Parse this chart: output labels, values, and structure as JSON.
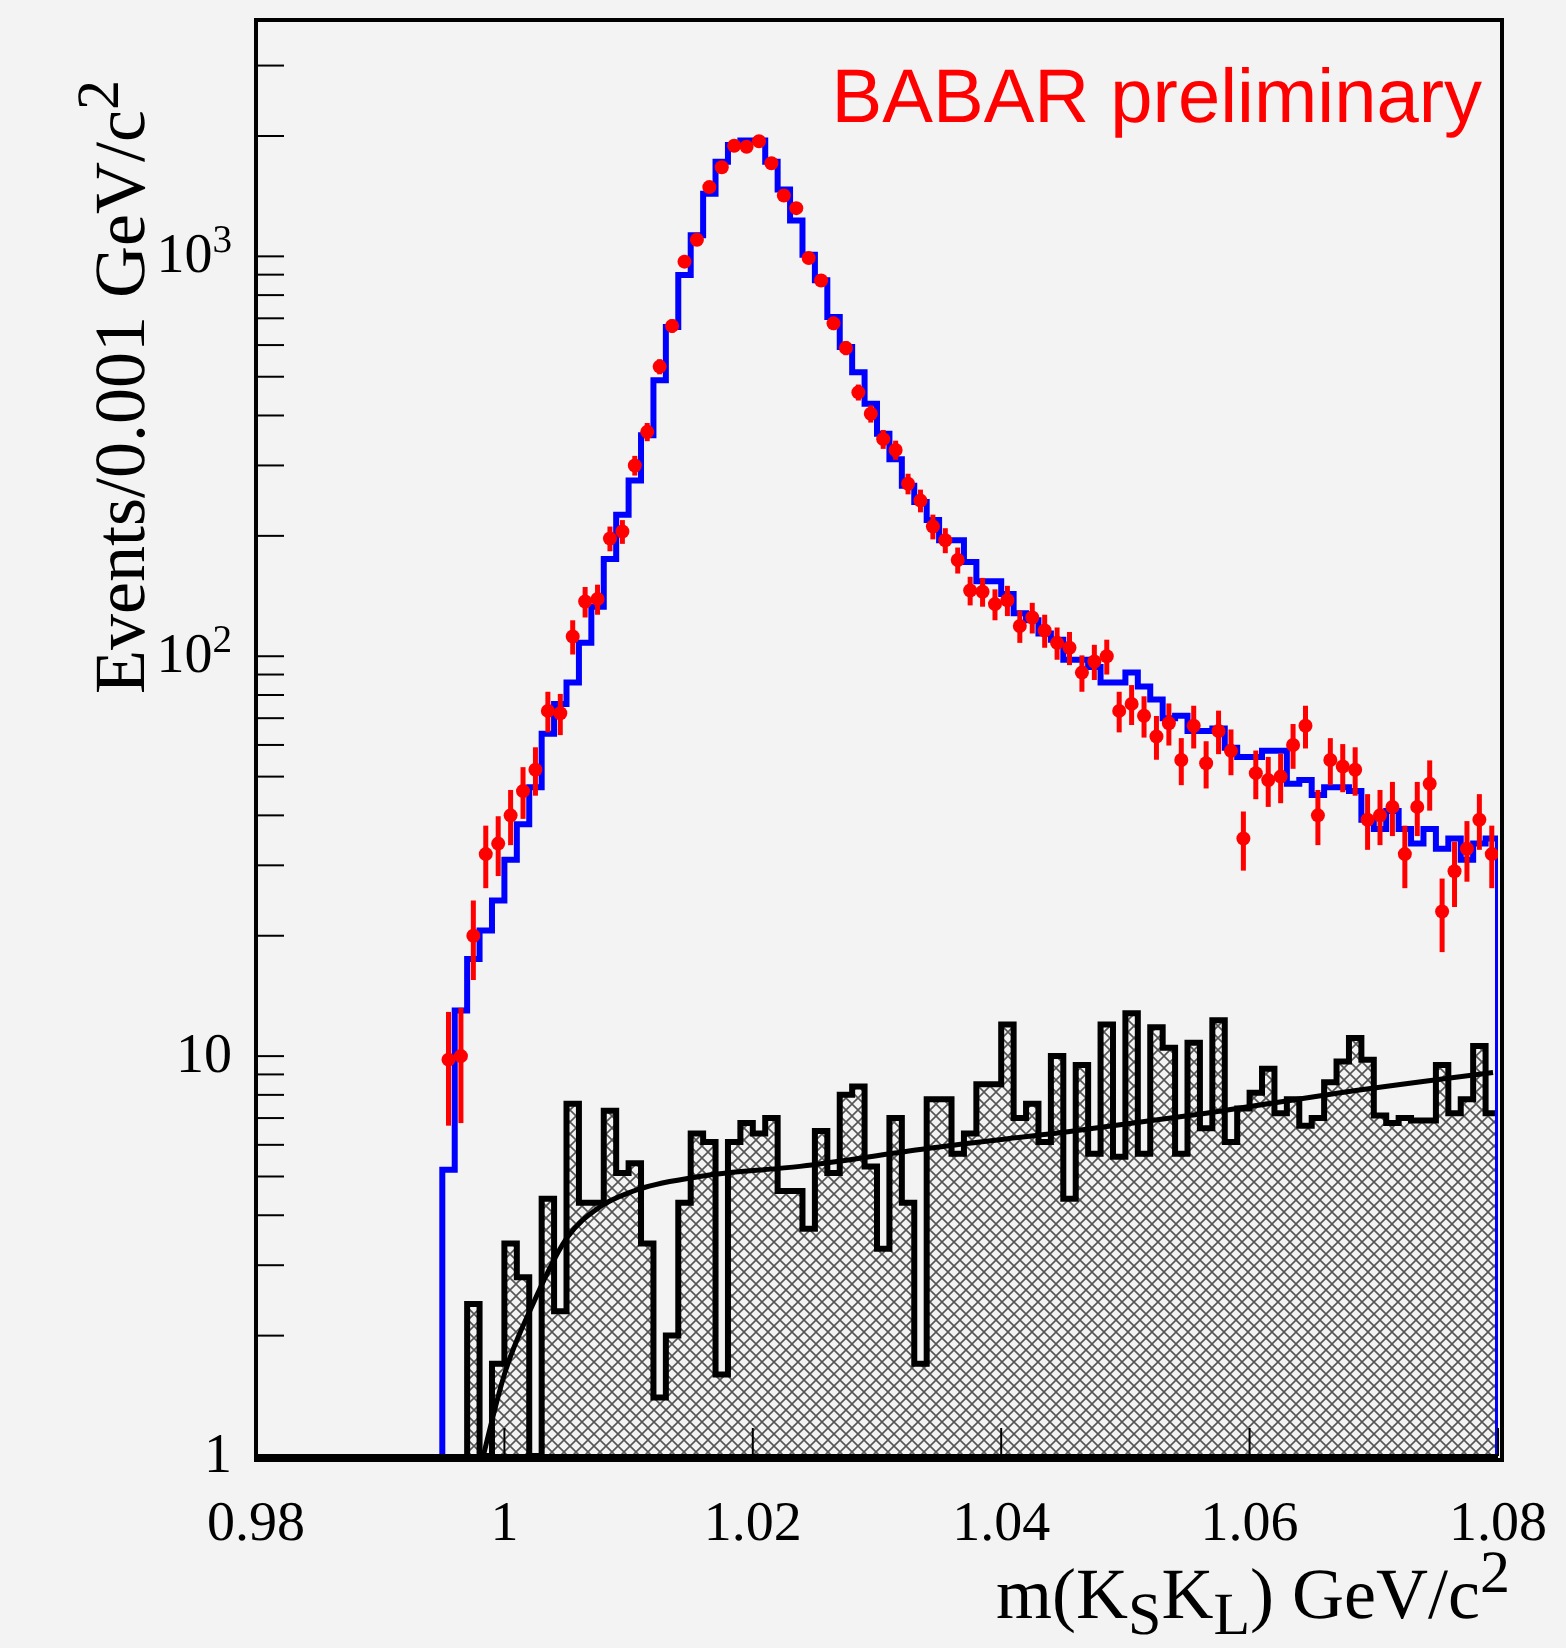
{
  "chart_data": {
    "type": "histogram",
    "xlabel": "m(K$_{S}$K$_{L}$) GeV/c$^{2}$",
    "ylabel": "Events/0.001 GeV/c$^{2}$",
    "annotations": [
      "BABAR preliminary"
    ],
    "xlim": [
      0.98,
      1.08
    ],
    "xticks": [
      0.98,
      1,
      1.02,
      1.04,
      1.06,
      1.08
    ],
    "ylim": [
      1,
      3900
    ],
    "log": true,
    "yticks": [
      1,
      {
        "value": 2,
        "label": null
      },
      {
        "value": 3,
        "label": null
      },
      {
        "value": 4,
        "label": null
      },
      {
        "value": 5,
        "label": null
      },
      {
        "value": 6,
        "label": null
      },
      {
        "value": 7,
        "label": null
      },
      {
        "value": 8,
        "label": null
      },
      {
        "value": 9,
        "label": null
      },
      10,
      {
        "value": 20,
        "label": null
      },
      {
        "value": 30,
        "label": null
      },
      {
        "value": 40,
        "label": null
      },
      {
        "value": 50,
        "label": null
      },
      {
        "value": 60,
        "label": null
      },
      {
        "value": 70,
        "label": null
      },
      {
        "value": 80,
        "label": null
      },
      {
        "value": 90,
        "label": null
      },
      {
        "value": 100,
        "label": "10$^{2}$"
      },
      {
        "value": 200,
        "label": null
      },
      {
        "value": 300,
        "label": null
      },
      {
        "value": 400,
        "label": null
      },
      {
        "value": 500,
        "label": null
      },
      {
        "value": 600,
        "label": null
      },
      {
        "value": 700,
        "label": null
      },
      {
        "value": 800,
        "label": null
      },
      {
        "value": 900,
        "label": null
      },
      {
        "value": 1000,
        "label": "10$^{3}$"
      },
      {
        "value": 2000,
        "label": null
      },
      {
        "value": 3000,
        "label": null
      }
    ],
    "series": [
      {
        "type": "histogram",
        "color": "#0000ff",
        "bins": [
          0.995,
          0.996,
          0.997,
          0.998,
          0.999,
          1.0,
          1.001,
          1.002,
          1.003,
          1.004,
          1.005,
          1.006,
          1.007,
          1.008,
          1.009,
          1.01,
          1.011,
          1.012,
          1.013,
          1.014,
          1.015,
          1.016,
          1.017,
          1.018,
          1.019,
          1.02,
          1.021,
          1.022,
          1.023,
          1.024,
          1.025,
          1.026,
          1.027,
          1.028,
          1.029,
          1.03,
          1.031,
          1.032,
          1.033,
          1.034,
          1.035,
          1.036,
          1.037,
          1.038,
          1.039,
          1.04,
          1.041,
          1.042,
          1.043,
          1.044,
          1.045,
          1.046,
          1.047,
          1.048,
          1.049,
          1.05,
          1.051,
          1.052,
          1.053,
          1.054,
          1.055,
          1.056,
          1.057,
          1.058,
          1.059,
          1.06,
          1.061,
          1.062,
          1.063,
          1.064,
          1.065,
          1.066,
          1.067,
          1.068,
          1.069,
          1.07,
          1.071,
          1.072,
          1.073,
          1.074,
          1.075,
          1.076,
          1.077,
          1.078,
          1.079,
          1.08
        ],
        "values": [
          5.2,
          13,
          17.5,
          20.6,
          24.5,
          31,
          38,
          47,
          64,
          76,
          86,
          108,
          133,
          175,
          226,
          275,
          357,
          490,
          666,
          898,
          1130,
          1435,
          1725,
          1900,
          1950,
          1950,
          1725,
          1470,
          1230,
          1010,
          871,
          705,
          593,
          513,
          428,
          360,
          311,
          267,
          243,
          219,
          195,
          195,
          172,
          154,
          154,
          143,
          128,
          123,
          114,
          110,
          98,
          98,
          94,
          86,
          86,
          91,
          84,
          78,
          70,
          71,
          65,
          65,
          66,
          59,
          56,
          56,
          58,
          58,
          48,
          49,
          45,
          47,
          47,
          46,
          39,
          37,
          41,
          37,
          34,
          37,
          33,
          35,
          31,
          34,
          35
        ]
      },
      {
        "type": "histogram",
        "color": "#000000",
        "bins": [
          0.997,
          0.998,
          0.999,
          1.0,
          1.001,
          1.002,
          1.003,
          1.004,
          1.005,
          1.006,
          1.007,
          1.008,
          1.009,
          1.01,
          1.011,
          1.012,
          1.013,
          1.014,
          1.015,
          1.016,
          1.017,
          1.018,
          1.019,
          1.02,
          1.021,
          1.022,
          1.023,
          1.024,
          1.025,
          1.026,
          1.027,
          1.028,
          1.029,
          1.03,
          1.031,
          1.032,
          1.033,
          1.034,
          1.035,
          1.036,
          1.037,
          1.038,
          1.039,
          1.04,
          1.041,
          1.042,
          1.043,
          1.044,
          1.045,
          1.046,
          1.047,
          1.048,
          1.049,
          1.05,
          1.051,
          1.052,
          1.053,
          1.054,
          1.055,
          1.056,
          1.057,
          1.058,
          1.059,
          1.06,
          1.061,
          1.062,
          1.063,
          1.064,
          1.065,
          1.066,
          1.067,
          1.068,
          1.069,
          1.07,
          1.071,
          1.072,
          1.073,
          1.074,
          1.075,
          1.076,
          1.077,
          1.078,
          1.079,
          1.08
        ],
        "values": [
          2.4,
          1,
          1.7,
          3.4,
          2.8,
          1,
          4.4,
          2.3,
          7.6,
          4.3,
          4.3,
          7.3,
          5.1,
          5.4,
          3.4,
          1.4,
          2.0,
          4.3,
          6.4,
          6.1,
          1.6,
          6.1,
          6.8,
          6.4,
          7.0,
          4.6,
          4.6,
          3.7,
          6.5,
          5.1,
          8.0,
          8.4,
          5.3,
          3.3,
          7.0,
          4.3,
          1.7,
          7.8,
          7.8,
          5.7,
          6.4,
          8.5,
          8.5,
          12,
          7.0,
          7.6,
          6.1,
          10,
          4.4,
          9.5,
          5.7,
          12,
          5.6,
          12.8,
          5.7,
          11.8,
          10.5,
          5.7,
          10.8,
          6.6,
          12.3,
          6.1,
          7.4,
          8.1,
          9.3,
          7.2,
          7.8,
          6.7,
          7.0,
          8.6,
          9.7,
          11.1,
          9.8,
          7.1,
          6.8,
          7.0,
          6.9,
          6.9,
          9.5,
          7.2,
          7.8,
          10.6,
          7.2
        ]
      },
      {
        "type": "scatter",
        "color": "#ff0000",
        "marker": "circle",
        "x": [
          0.9955,
          0.9965,
          0.9975,
          0.9985,
          0.9995,
          1.0005,
          1.0015,
          1.0025,
          1.0035,
          1.0045,
          1.0055,
          1.0065,
          1.0075,
          1.0085,
          1.0095,
          1.0105,
          1.0115,
          1.0125,
          1.0135,
          1.0145,
          1.0155,
          1.0165,
          1.0175,
          1.0185,
          1.0195,
          1.0205,
          1.0215,
          1.0225,
          1.0235,
          1.0245,
          1.0255,
          1.0265,
          1.0275,
          1.0285,
          1.0295,
          1.0305,
          1.0315,
          1.0325,
          1.0335,
          1.0345,
          1.0355,
          1.0365,
          1.0375,
          1.0385,
          1.0395,
          1.0405,
          1.0415,
          1.0425,
          1.0435,
          1.0445,
          1.0455,
          1.0465,
          1.0475,
          1.0485,
          1.0495,
          1.0505,
          1.0515,
          1.0525,
          1.0535,
          1.0545,
          1.0555,
          1.0565,
          1.0575,
          1.0585,
          1.0595,
          1.0605,
          1.0615,
          1.0625,
          1.0635,
          1.0645,
          1.0655,
          1.0665,
          1.0675,
          1.0685,
          1.0695,
          1.0705,
          1.0715,
          1.0725,
          1.0735,
          1.0745,
          1.0755,
          1.0765,
          1.0775,
          1.0785,
          1.0795
        ],
        "values": [
          9.8,
          10,
          20,
          32,
          34,
          40,
          46,
          52,
          73,
          72,
          112,
          137,
          139,
          197,
          205,
          300,
          364,
          530,
          670,
          970,
          1100,
          1490,
          1670,
          1890,
          1880,
          1940,
          1710,
          1420,
          1320,
          990,
          870,
          680,
          590,
          457,
          404,
          349,
          328,
          270,
          245,
          211,
          195,
          174,
          146,
          145,
          135,
          138,
          119,
          125,
          116,
          108,
          105,
          91,
          97,
          100,
          73,
          76,
          71,
          63,
          68,
          55,
          67,
          54,
          65,
          58,
          35,
          51,
          49,
          50,
          60,
          67,
          40,
          55,
          53,
          52,
          39,
          40,
          42,
          32,
          42,
          48,
          23,
          29,
          33,
          39,
          32
        ],
        "errors": [
          3.1,
          3.2,
          4.5,
          5.7,
          5.8,
          6.3,
          6.8,
          7.2,
          8.5,
          8.5,
          11,
          12,
          12,
          14,
          14,
          17,
          19,
          23,
          26,
          31,
          33,
          39,
          41,
          43,
          43,
          44,
          41,
          38,
          36,
          31,
          30,
          26,
          24,
          21,
          20,
          19,
          18,
          16,
          16,
          15,
          14,
          13,
          12,
          12,
          12,
          12,
          11,
          11,
          11,
          10,
          10,
          9.5,
          9.8,
          10,
          8.5,
          8.7,
          8.4,
          7.9,
          8.2,
          7.4,
          8.2,
          7.3,
          8.1,
          7.6,
          5.9,
          7.1,
          7,
          7.1,
          7.7,
          8.2,
          6.3,
          7.4,
          7.3,
          7.2,
          6.2,
          6.3,
          6.5,
          5.7,
          6.5,
          6.9,
          4.8,
          5.4,
          5.7,
          6.2,
          5.7
        ]
      },
      {
        "type": "line",
        "color": "#000000",
        "x": [
          0.9983,
          1.0,
          1.0023,
          1.005,
          1.0077,
          1.0104,
          1.0157,
          1.0238,
          1.0345,
          1.0458,
          1.0565,
          1.0673,
          1.0796
        ],
        "values": [
          1,
          1.6,
          2.4,
          3.5,
          4.2,
          4.6,
          5.0,
          5.3,
          5.9,
          6.5,
          7.2,
          8.1,
          9.1
        ]
      }
    ]
  }
}
